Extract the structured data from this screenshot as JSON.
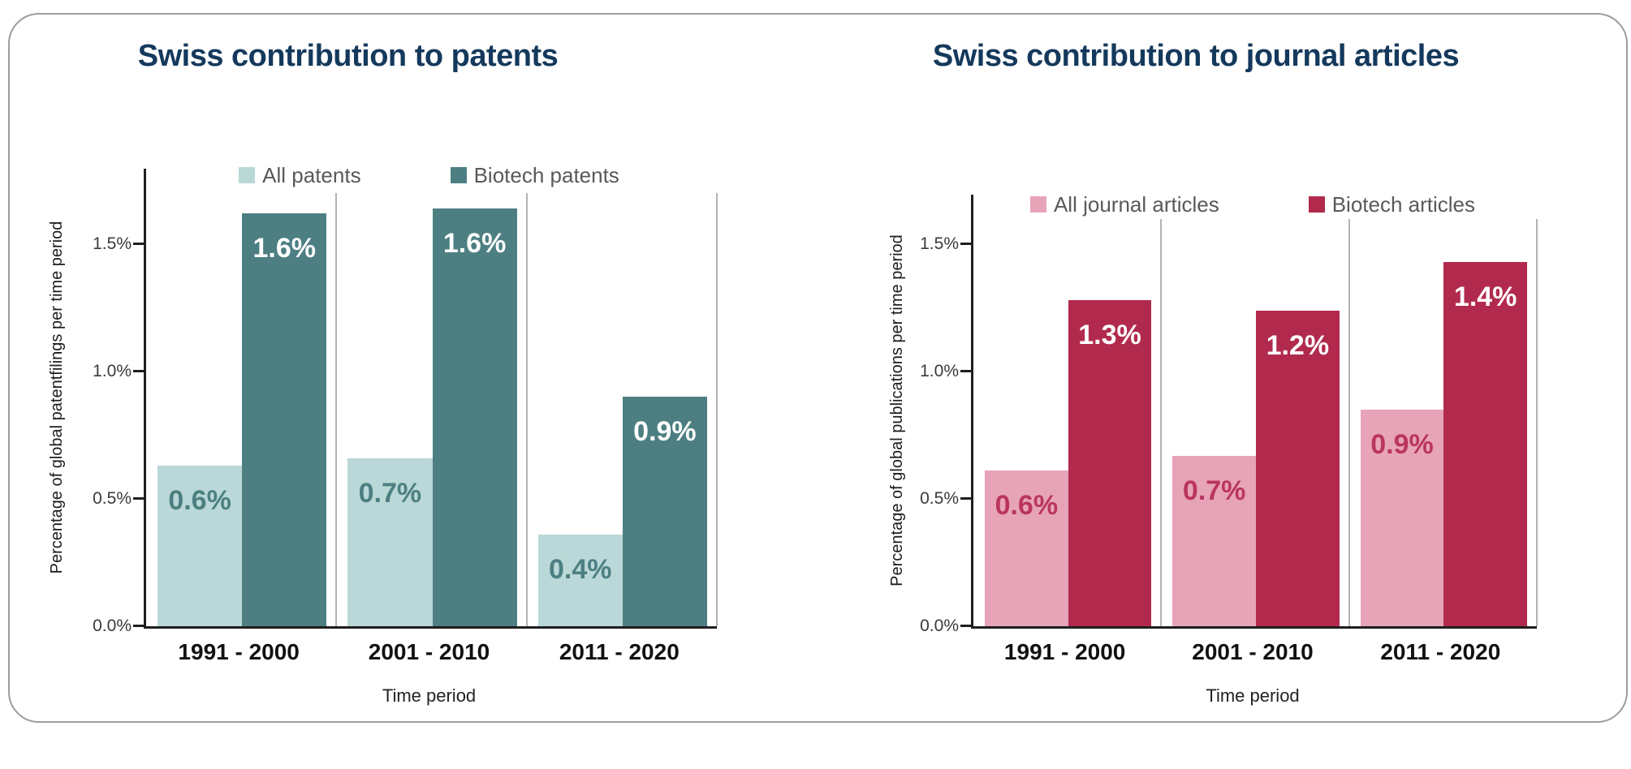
{
  "colors": {
    "title_text": "#14395c",
    "legend_text": "#595959",
    "axis_line": "#1f1f1f",
    "tick_text": "#3a3a3a",
    "category_text": "#111111",
    "group_separator": "#b3b3b3",
    "frame_border": "#9c9c9c"
  },
  "chart_data": [
    {
      "type": "bar",
      "title": "Swiss contribution to patents",
      "xlabel": "Time period",
      "ylabel": "Percentage of global patentfilings per time period",
      "categories": [
        "1991 - 2000",
        "2001 - 2010",
        "2011 - 2020"
      ],
      "yticks": [
        "0.0%",
        "0.5%",
        "1.0%",
        "1.5%"
      ],
      "ylim": [
        0,
        1.8
      ],
      "legend_position": "top-center",
      "grid": "vertical separator lines between category groups",
      "series": [
        {
          "name": "All patents",
          "values": [
            0.6,
            0.7,
            0.4
          ],
          "labels": [
            "0.6%",
            "0.7%",
            "0.4%"
          ],
          "bar_color": "#b9d8d7",
          "label_color": "#4d7f82"
        },
        {
          "name": "Biotech patents",
          "values": [
            1.6,
            1.6,
            0.9
          ],
          "labels": [
            "1.6%",
            "1.6%",
            "0.9%"
          ],
          "bar_color": "#4d7f82",
          "label_color": "#ffffff"
        }
      ],
      "bar_heights_est": [
        [
          0.63,
          0.66,
          0.36
        ],
        [
          1.62,
          1.64,
          0.9
        ]
      ]
    },
    {
      "type": "bar",
      "title": "Swiss contribution to journal articles",
      "xlabel": "Time period",
      "ylabel": "Percentage of global publications per time period",
      "categories": [
        "1991 - 2000",
        "2001 - 2010",
        "2011 - 2020"
      ],
      "yticks": [
        "0.0%",
        "0.5%",
        "1.0%",
        "1.5%"
      ],
      "ylim": [
        0,
        1.7
      ],
      "legend_position": "top-center",
      "grid": "vertical separator lines between category groups",
      "series": [
        {
          "name": "All journal articles",
          "values": [
            0.6,
            0.7,
            0.9
          ],
          "labels": [
            "0.6%",
            "0.7%",
            "0.9%"
          ],
          "bar_color": "#e7a4b8",
          "label_color": "#ba3560"
        },
        {
          "name": "Biotech articles",
          "values": [
            1.3,
            1.2,
            1.4
          ],
          "labels": [
            "1.3%",
            "1.2%",
            "1.4%"
          ],
          "bar_color": "#b12a4d",
          "label_color": "#ffffff"
        }
      ],
      "bar_heights_est": [
        [
          0.61,
          0.67,
          0.85
        ],
        [
          1.28,
          1.24,
          1.43
        ]
      ]
    }
  ]
}
